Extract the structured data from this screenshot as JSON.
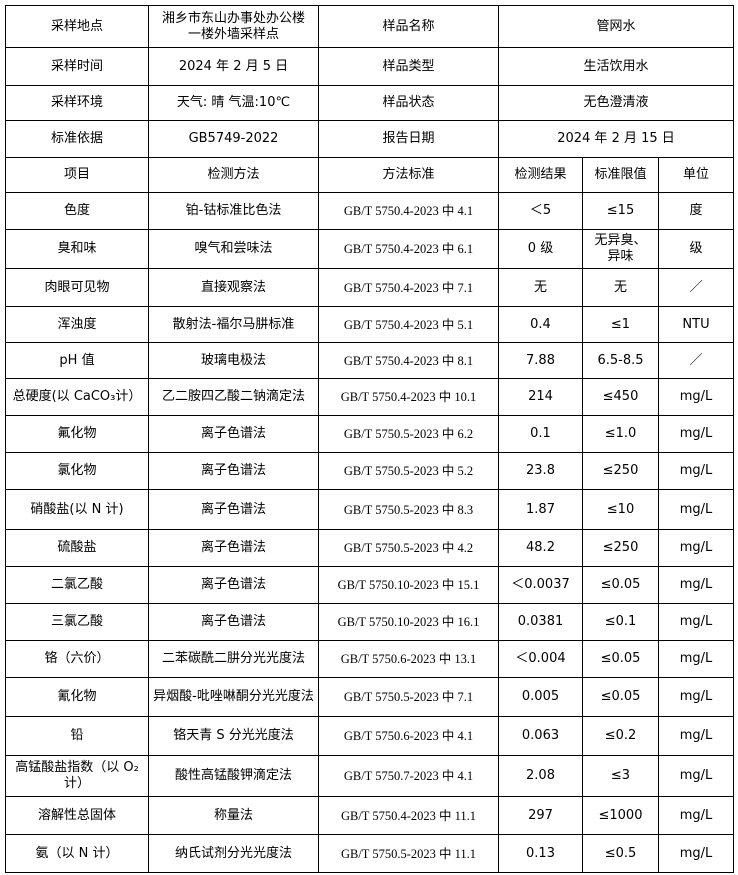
{
  "header_rows": [
    [
      "采样地点",
      "湘乡市东山办事处办公楼一楼外墙采样点",
      "样品名称",
      "管网水"
    ],
    [
      "采样时间",
      "2024 年 2 月 5 日",
      "样品类型",
      "生活饮用水"
    ],
    [
      "采样环境",
      "天气: 晴  气温:10℃",
      "样品状态",
      "无色澄清液"
    ],
    [
      "标准依据",
      "GB5749-2022",
      "报告日期",
      "2024 年 2 月 15 日"
    ]
  ],
  "table": {
    "columns": [
      "项目",
      "检测方法",
      "方法标准",
      "检测结果",
      "标准限值",
      "单位"
    ],
    "rows": [
      [
        "色度",
        "铂-钴标准比色法",
        "GB/T 5750.4-2023 中 4.1",
        "＜5",
        "≤15",
        "度"
      ],
      [
        "臭和味",
        "嗅气和尝味法",
        "GB/T 5750.4-2023 中 6.1",
        "0 级",
        "无异臭、异味",
        "级"
      ],
      [
        "肉眼可见物",
        "直接观察法",
        "GB/T 5750.4-2023 中 7.1",
        "无",
        "无",
        "／"
      ],
      [
        "浑浊度",
        "散射法-福尔马肼标准",
        "GB/T 5750.4-2023 中 5.1",
        "0.4",
        "≤1",
        "NTU"
      ],
      [
        "pH 值",
        "玻璃电极法",
        "GB/T 5750.4-2023 中 8.1",
        "7.88",
        "6.5-8.5",
        "／"
      ],
      [
        "总硬度(以 CaCO₃计）",
        "乙二胺四乙酸二钠滴定法",
        "GB/T 5750.4-2023 中 10.1",
        "214",
        "≤450",
        "mg/L"
      ],
      [
        "氟化物",
        "离子色谱法",
        "GB/T 5750.5-2023 中 6.2",
        "0.1",
        "≤1.0",
        "mg/L"
      ],
      [
        "氯化物",
        "离子色谱法",
        "GB/T 5750.5-2023 中 5.2",
        "23.8",
        "≤250",
        "mg/L"
      ],
      [
        "硝酸盐(以 N 计)",
        "离子色谱法",
        "GB/T 5750.5-2023 中 8.3",
        "1.87",
        "≤10",
        "mg/L"
      ],
      [
        "硫酸盐",
        "离子色谱法",
        "GB/T 5750.5-2023 中 4.2",
        "48.2",
        "≤250",
        "mg/L"
      ],
      [
        "二氯乙酸",
        "离子色谱法",
        "GB/T 5750.10-2023 中 15.1",
        "＜0.0037",
        "≤0.05",
        "mg/L"
      ],
      [
        "三氯乙酸",
        "离子色谱法",
        "GB/T 5750.10-2023 中 16.1",
        "0.0381",
        "≤0.1",
        "mg/L"
      ],
      [
        "铬（六价）",
        "二苯碳酰二肼分光光度法",
        "GB/T 5750.6-2023 中 13.1",
        "＜0.004",
        "≤0.05",
        "mg/L"
      ],
      [
        "氰化物",
        "异烟酸-吡唑啉酮分光光度法",
        "GB/T 5750.5-2023 中 7.1",
        "0.005",
        "≤0.05",
        "mg/L"
      ],
      [
        "铅",
        "铬天青 S 分光光度法",
        "GB/T 5750.6-2023 中 4.1",
        "0.063",
        "≤0.2",
        "mg/L"
      ],
      [
        "高锰酸盐指数（以 O₂计）",
        "酸性高锰酸钾滴定法",
        "GB/T 5750.7-2023 中 4.1",
        "2.08",
        "≤3",
        "mg/L"
      ],
      [
        "溶解性总固体",
        "称量法",
        "GB/T 5750.4-2023 中 11.1",
        "297",
        "≤1000",
        "mg/L"
      ],
      [
        "氨（以 N 计）",
        "纳氏试剂分光光度法",
        "GB/T 5750.5-2023 中 11.1",
        "0.13",
        "≤0.5",
        "mg/L"
      ]
    ]
  }
}
